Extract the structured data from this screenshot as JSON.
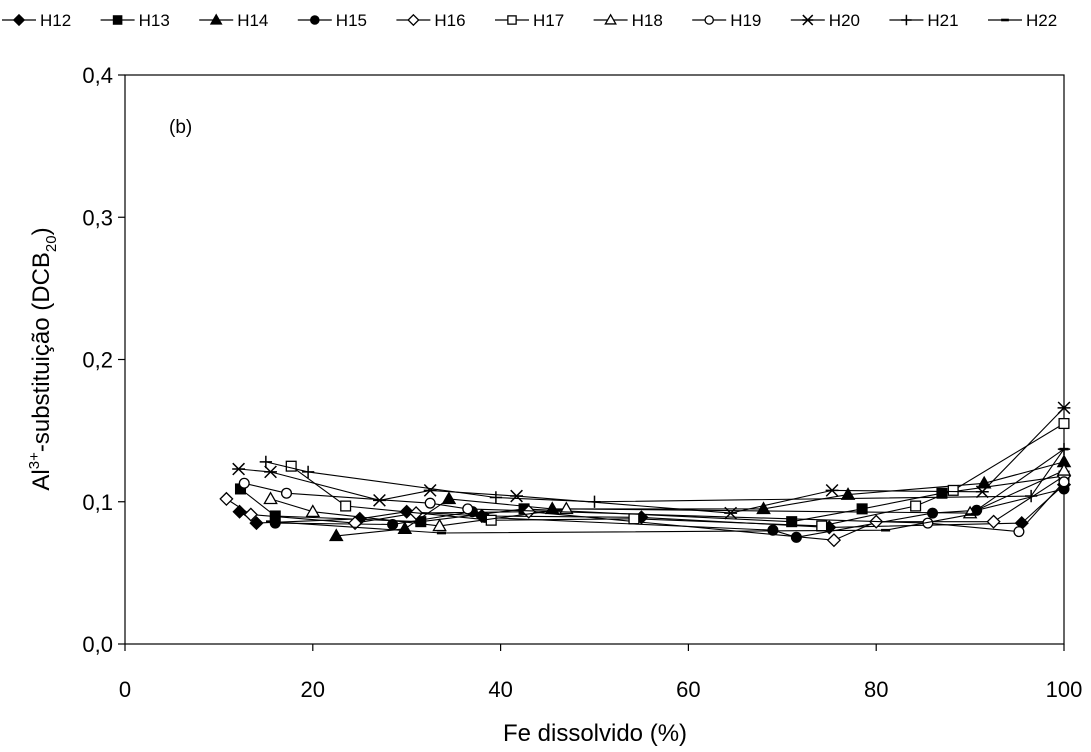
{
  "chart_data": {
    "type": "line",
    "panel_label": "(b)",
    "xlabel": "Fe dissolvido (%)",
    "ylabel": {
      "base": "Al",
      "sup": "3+",
      "mid": "-substituição (DCB",
      "sub": "20",
      "end": ")"
    },
    "xlim": [
      0,
      100
    ],
    "ylim": [
      0.0,
      0.4
    ],
    "x_ticks": [
      0,
      20,
      40,
      60,
      80,
      100
    ],
    "x_tick_labels": [
      "0",
      "20",
      "40",
      "60",
      "80",
      "100"
    ],
    "y_ticks": [
      0.0,
      0.1,
      0.2,
      0.3,
      0.4
    ],
    "y_tick_labels": [
      "0,0",
      "0,1",
      "0,2",
      "0,3",
      "0,4"
    ],
    "grid": false,
    "legend_position": "top",
    "series": [
      {
        "name": "H12",
        "marker": "filled-diamond",
        "x": [
          12.2,
          14.0,
          25.0,
          30.0,
          38.0,
          55.0,
          75.0,
          95.5,
          100.0
        ],
        "y": [
          0.093,
          0.085,
          0.088,
          0.093,
          0.09,
          0.089,
          0.082,
          0.085,
          0.112
        ]
      },
      {
        "name": "H13",
        "marker": "filled-square",
        "x": [
          12.3,
          16.0,
          31.5,
          42.5,
          71.0,
          78.5,
          87.0,
          100.0
        ],
        "y": [
          0.109,
          0.09,
          0.086,
          0.095,
          0.086,
          0.095,
          0.106,
          0.118
        ]
      },
      {
        "name": "H14",
        "marker": "filled-triangle",
        "x": [
          22.5,
          29.8,
          34.5,
          45.5,
          68.0,
          77.0,
          91.5,
          100.0
        ],
        "y": [
          0.076,
          0.081,
          0.102,
          0.095,
          0.095,
          0.105,
          0.113,
          0.128
        ]
      },
      {
        "name": "H15",
        "marker": "filled-circle",
        "x": [
          16.0,
          28.5,
          37.0,
          38.3,
          69.0,
          71.5,
          86.0,
          90.7,
          100.0
        ],
        "y": [
          0.085,
          0.084,
          0.093,
          0.089,
          0.08,
          0.075,
          0.092,
          0.094,
          0.109
        ]
      },
      {
        "name": "H16",
        "marker": "open-diamond",
        "x": [
          10.8,
          13.4,
          24.5,
          31.0,
          43.0,
          75.5,
          80.0,
          92.5,
          100.0
        ],
        "y": [
          0.102,
          0.091,
          0.085,
          0.092,
          0.093,
          0.073,
          0.086,
          0.086,
          0.118
        ]
      },
      {
        "name": "H17",
        "marker": "open-square",
        "x": [
          17.7,
          23.5,
          39.0,
          54.2,
          74.2,
          84.2,
          88.2,
          100.0
        ],
        "y": [
          0.125,
          0.097,
          0.087,
          0.088,
          0.083,
          0.097,
          0.108,
          0.155
        ]
      },
      {
        "name": "H18",
        "marker": "open-triangle",
        "x": [
          15.5,
          20.0,
          33.5,
          47.0,
          90.0,
          100.0
        ],
        "y": [
          0.102,
          0.093,
          0.083,
          0.095,
          0.092,
          0.122
        ]
      },
      {
        "name": "H19",
        "marker": "open-circle",
        "x": [
          12.7,
          17.2,
          32.5,
          36.5,
          85.5,
          95.2,
          100.0
        ],
        "y": [
          0.113,
          0.106,
          0.099,
          0.095,
          0.085,
          0.079,
          0.114
        ]
      },
      {
        "name": "H20",
        "marker": "asterisk",
        "x": [
          12.1,
          15.5,
          27.1,
          32.5,
          41.7,
          64.5,
          75.3,
          91.3,
          100.0
        ],
        "y": [
          0.123,
          0.121,
          0.101,
          0.108,
          0.104,
          0.092,
          0.108,
          0.107,
          0.166
        ]
      },
      {
        "name": "H21",
        "marker": "plus",
        "x": [
          15.0,
          19.5,
          39.5,
          50.0,
          96.5,
          100.0
        ],
        "y": [
          0.128,
          0.121,
          0.103,
          0.1,
          0.104,
          0.137
        ]
      },
      {
        "name": "H22",
        "marker": "dash",
        "x": [
          15.5,
          33.7,
          81.0,
          90.0,
          100.0
        ],
        "y": [
          0.086,
          0.078,
          0.08,
          0.091,
          0.137
        ]
      }
    ]
  }
}
